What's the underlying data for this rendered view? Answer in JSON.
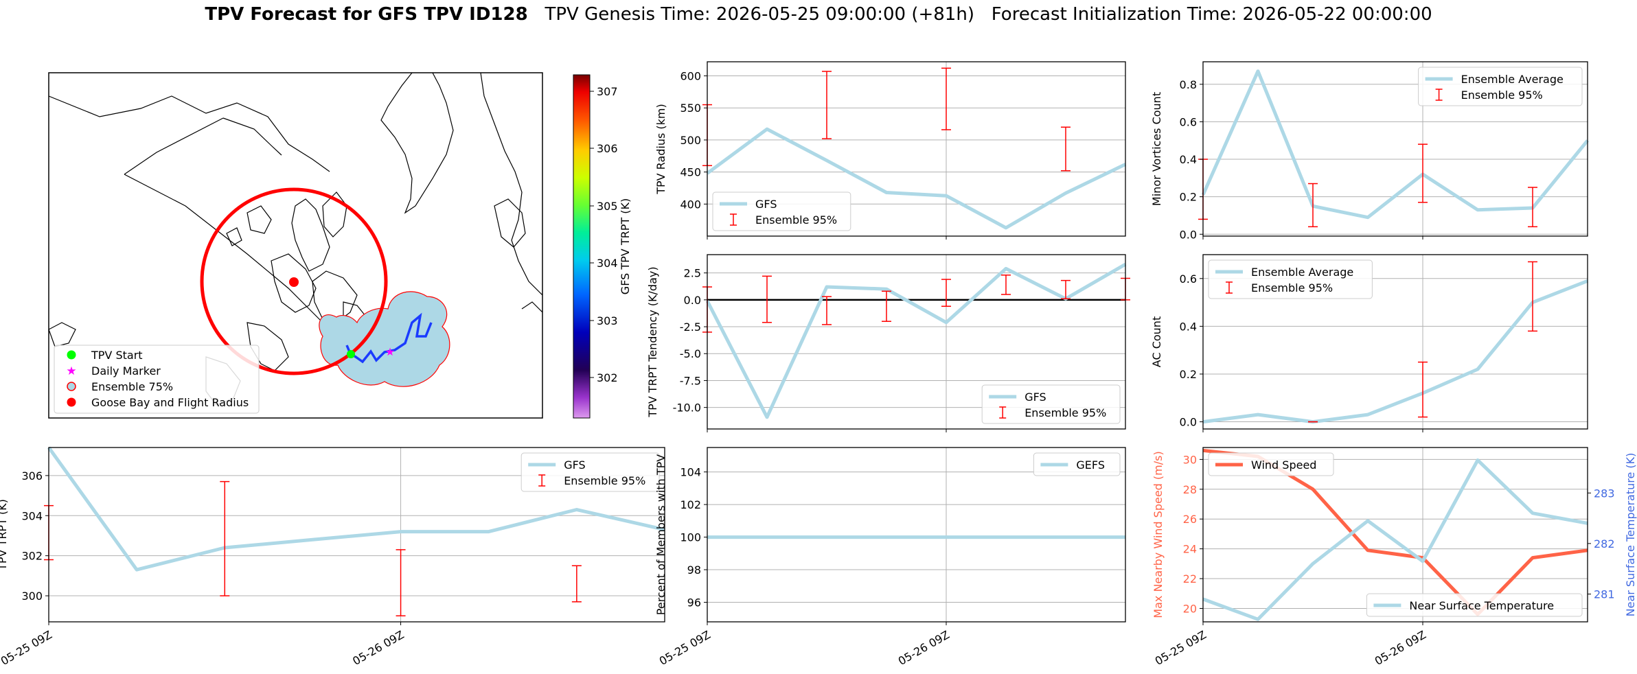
{
  "figure_title": {
    "bold": "TPV Forecast for GFS TPV ID128",
    "genesis": "TPV Genesis Time: 2026-05-25 09:00:00 (+81h)",
    "init": "Forecast Initialization Time: 2026-05-22 00:00:00"
  },
  "colors": {
    "gfs_line": "#add8e6",
    "errorbar": "#ff0000",
    "wind_line": "#ff6347",
    "temp_axis": "#4169e1",
    "track_start": "#00ff00",
    "daily_marker": "#ff00ff",
    "goose_bay": "#ff0000",
    "ensemble_fill": "#add8e6"
  },
  "map": {
    "legend": [
      {
        "label": "TPV Start",
        "marker": "green-dot-icon"
      },
      {
        "label": "Daily Marker",
        "marker": "magenta-star-icon"
      },
      {
        "label": "Ensemble 75%",
        "marker": "ensemble-patch-icon"
      },
      {
        "label": "Goose Bay and Flight Radius",
        "marker": "red-dot-icon"
      }
    ],
    "colorbar": {
      "label": "GFS TPV TRPT (K)",
      "ticks": [
        "307",
        "306",
        "305",
        "304",
        "303",
        "302"
      ]
    }
  },
  "chart_data": [
    {
      "id": "tpv_trpt",
      "type": "line",
      "x": [
        "05-25 09Z",
        "05-25 15Z",
        "05-25 21Z",
        "05-26 03Z",
        "05-26 09Z",
        "05-26 15Z",
        "05-26 21Z",
        "05-27 03Z"
      ],
      "xticks": [
        "05-25 09Z",
        "05-26 09Z"
      ],
      "ylabel": "TPV TRPT (K)",
      "ylim": [
        298.7,
        307.4
      ],
      "yticks": [
        "300",
        "302",
        "304",
        "306"
      ],
      "series": [
        {
          "name": "GFS",
          "values": [
            307.4,
            301.3,
            302.4,
            302.8,
            303.2,
            303.2,
            304.3,
            303.3
          ]
        }
      ],
      "errorbars": [
        {
          "x_index": 0,
          "low": 301.8,
          "high": 304.5
        },
        {
          "x_index": 2,
          "low": 300.0,
          "high": 305.7
        },
        {
          "x_index": 4,
          "low": 299.0,
          "high": 302.3
        },
        {
          "x_index": 6,
          "low": 299.7,
          "high": 301.5
        }
      ],
      "legend": [
        "GFS",
        "Ensemble 95%"
      ],
      "legend_position": "top-right",
      "grid": true
    },
    {
      "id": "tpv_radius",
      "type": "line",
      "ylabel": "TPV Radius (km)",
      "ylim": [
        350,
        622
      ],
      "yticks": [
        "400",
        "450",
        "500",
        "550",
        "600"
      ],
      "series": [
        {
          "name": "GFS",
          "values": [
            448,
            517,
            468,
            418,
            413,
            363,
            417,
            462
          ]
        }
      ],
      "errorbars": [
        {
          "x_index": 0,
          "low": 460,
          "high": 555
        },
        {
          "x_index": 2,
          "low": 502,
          "high": 607
        },
        {
          "x_index": 4,
          "low": 516,
          "high": 612
        },
        {
          "x_index": 6,
          "low": 452,
          "high": 520
        }
      ],
      "legend": [
        "GFS",
        "Ensemble 95%"
      ],
      "legend_position": "bottom-left",
      "grid": true
    },
    {
      "id": "trpt_tendency",
      "type": "line",
      "ylabel": "TPV TRPT Tendency (K/day)",
      "ylim": [
        -12.0,
        4.2
      ],
      "yticks": [
        "-10.0",
        "-7.5",
        "-5.0",
        "-2.5",
        "0.0",
        "2.5"
      ],
      "series": [
        {
          "name": "GFS",
          "values": [
            -0.1,
            -10.9,
            1.2,
            1.0,
            -2.1,
            2.9,
            0.1,
            3.3
          ]
        }
      ],
      "errorbars": [
        {
          "x_index": 0,
          "low": -3.0,
          "high": 1.2
        },
        {
          "x_index": 1,
          "low": -2.1,
          "high": 2.2
        },
        {
          "x_index": 2,
          "low": -2.3,
          "high": 0.3
        },
        {
          "x_index": 3,
          "low": -2.0,
          "high": 0.8
        },
        {
          "x_index": 4,
          "low": -0.6,
          "high": 1.9
        },
        {
          "x_index": 5,
          "low": 0.5,
          "high": 2.3
        },
        {
          "x_index": 6,
          "low": 0.1,
          "high": 1.8
        },
        {
          "x_index": 7,
          "low": 0.0,
          "high": 2.0
        }
      ],
      "legend": [
        "GFS",
        "Ensemble 95%"
      ],
      "legend_position": "bottom-right",
      "grid": true
    },
    {
      "id": "percent_members",
      "type": "line",
      "xticks": [
        "05-25 09Z",
        "05-26 09Z"
      ],
      "ylabel": "Percent of Members with TPV",
      "ylim": [
        94.8,
        105.5
      ],
      "yticks": [
        "96",
        "98",
        "100",
        "102",
        "104"
      ],
      "series": [
        {
          "name": "GEFS",
          "values": [
            100,
            100,
            100,
            100,
            100,
            100,
            100,
            100
          ]
        }
      ],
      "legend": [
        "GEFS"
      ],
      "legend_position": "top-right",
      "grid": true
    },
    {
      "id": "minor_vortices",
      "type": "line",
      "ylabel": "Minor Vortices Count",
      "ylim": [
        -0.01,
        0.92
      ],
      "yticks": [
        "0.0",
        "0.2",
        "0.4",
        "0.6",
        "0.8"
      ],
      "series": [
        {
          "name": "Ensemble Average",
          "values": [
            0.21,
            0.87,
            0.15,
            0.09,
            0.32,
            0.13,
            0.14,
            0.5
          ]
        }
      ],
      "errorbars": [
        {
          "x_index": 0,
          "low": 0.08,
          "high": 0.4
        },
        {
          "x_index": 2,
          "low": 0.04,
          "high": 0.27
        },
        {
          "x_index": 4,
          "low": 0.17,
          "high": 0.48
        },
        {
          "x_index": 6,
          "low": 0.04,
          "high": 0.25
        }
      ],
      "legend": [
        "Ensemble Average",
        "Ensemble 95%"
      ],
      "legend_position": "top-right",
      "grid": true
    },
    {
      "id": "ac_count",
      "type": "line",
      "ylabel": "AC Count",
      "ylim": [
        -0.03,
        0.7
      ],
      "yticks": [
        "0.0",
        "0.2",
        "0.4",
        "0.6"
      ],
      "series": [
        {
          "name": "Ensemble Average",
          "values": [
            0.0,
            0.03,
            0.0,
            0.03,
            0.12,
            0.22,
            0.5,
            0.59
          ]
        }
      ],
      "errorbars": [
        {
          "x_index": 2,
          "low": 0.0,
          "high": 0.0
        },
        {
          "x_index": 4,
          "low": 0.02,
          "high": 0.25
        },
        {
          "x_index": 6,
          "low": 0.38,
          "high": 0.67
        }
      ],
      "legend": [
        "Ensemble Average",
        "Ensemble 95%"
      ],
      "legend_position": "top-left",
      "grid": true
    },
    {
      "id": "wind_temp",
      "type": "line",
      "xticks": [
        "05-25 09Z",
        "05-26 09Z"
      ],
      "ylabel": "Max Nearby Wind Speed (m/s)",
      "ylim": [
        19.1,
        30.8
      ],
      "yticks": [
        "20",
        "22",
        "24",
        "26",
        "28",
        "30"
      ],
      "y2label": "Near Surface Temperature (K)",
      "y2lim": [
        280.45,
        283.9
      ],
      "y2ticks": [
        "281",
        "282",
        "283"
      ],
      "series": [
        {
          "name": "Wind Speed",
          "axis": "left",
          "values": [
            30.6,
            30.2,
            28.0,
            23.9,
            23.4,
            19.6,
            23.4,
            23.9
          ]
        },
        {
          "name": "Near Surface Temperature",
          "axis": "right",
          "values": [
            280.9,
            280.5,
            281.6,
            282.45,
            281.65,
            283.65,
            282.6,
            282.4
          ]
        }
      ],
      "legend_left": [
        "Wind Speed"
      ],
      "legend_right": [
        "Near Surface Temperature"
      ],
      "grid": true
    }
  ]
}
